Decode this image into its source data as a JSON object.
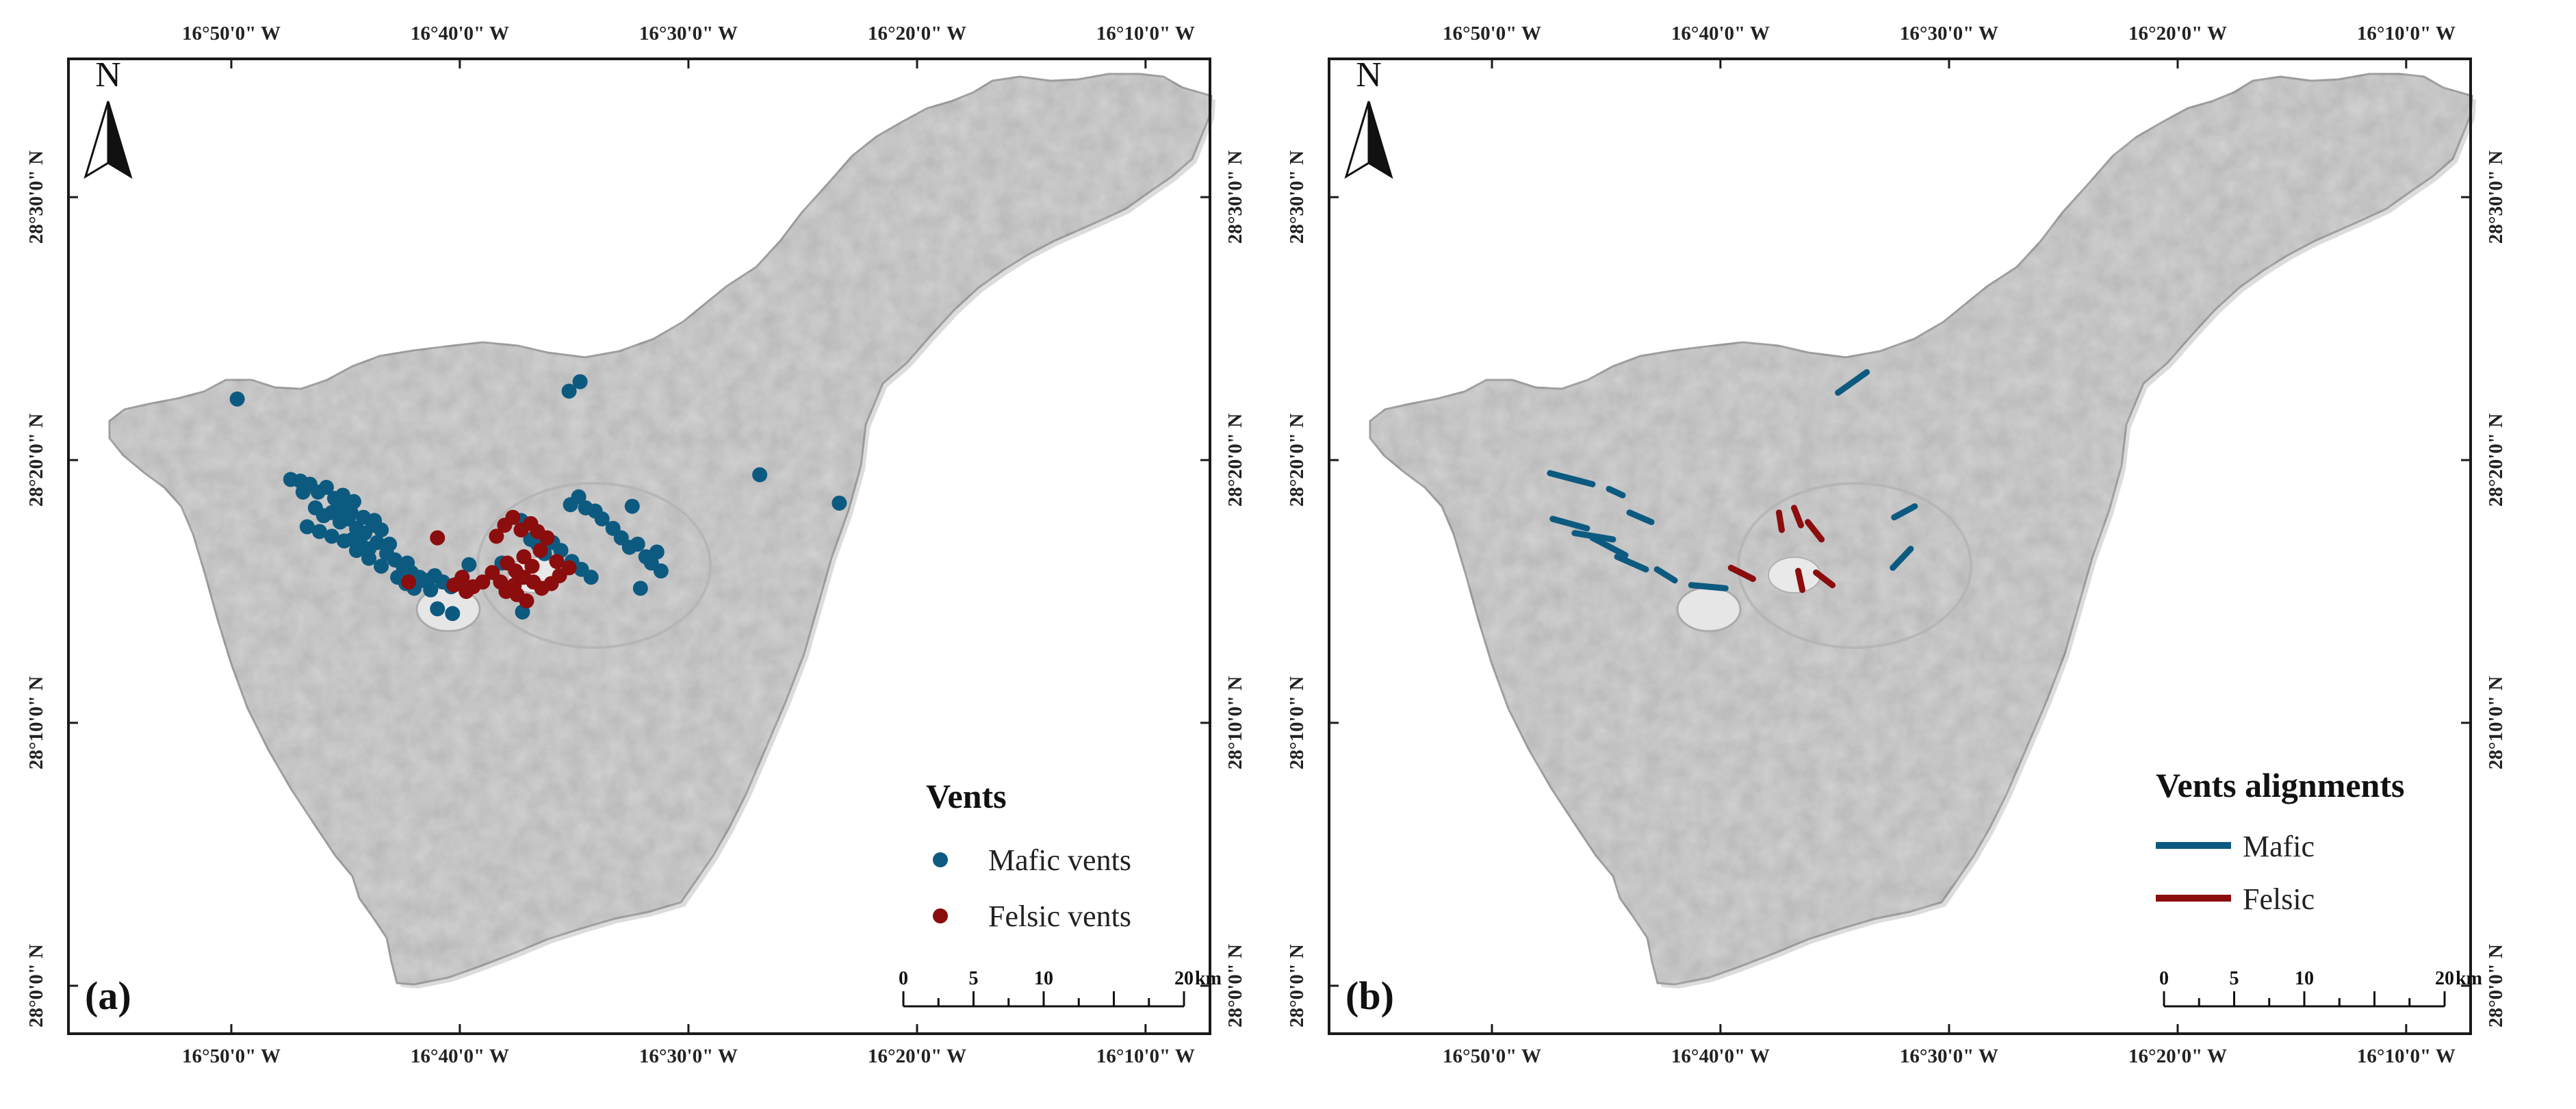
{
  "colors": {
    "mafic": "#0d5a80",
    "felsic": "#8b0d0d",
    "frame": "#1a1a1a",
    "land": "#d2d2d2",
    "land_stroke": "#a8a8a8",
    "sea": "#ffffff"
  },
  "coords": {
    "top_labels": [
      "16°50'0\" W",
      "16°40'0\" W",
      "16°30'0\" W",
      "16°20'0\" W",
      "16°10'0\" W"
    ],
    "bottom_labels": [
      "16°50'0\" W",
      "16°40'0\" W",
      "16°30'0\" W",
      "16°20'0\" W",
      "16°10'0\" W"
    ],
    "lat_labels": [
      "28°30'0\" N",
      "28°20'0\" N",
      "28°10'0\" N",
      "28°0'0\" N"
    ]
  },
  "north": {
    "label": "N",
    "icon": "north-arrow-icon"
  },
  "panels": [
    {
      "label": "(a)",
      "legend": {
        "title": "Vents",
        "items": [
          {
            "label": "Mafic vents",
            "symbol": "dot",
            "color": "#0d5a80"
          },
          {
            "label": "Felsic vents",
            "symbol": "dot",
            "color": "#8b0d0d"
          }
        ]
      },
      "scale": {
        "ticks": [
          "0",
          "5",
          "10",
          "20"
        ],
        "unit": "km"
      }
    },
    {
      "label": "(b)",
      "legend": {
        "title": "Vents alignments",
        "items": [
          {
            "label": "Mafic",
            "symbol": "line",
            "color": "#0d5a80"
          },
          {
            "label": "Felsic",
            "symbol": "line",
            "color": "#8b0d0d"
          }
        ]
      },
      "scale": {
        "ticks": [
          "0",
          "5",
          "10",
          "20"
        ],
        "unit": "km"
      }
    }
  ],
  "map_data": {
    "lon_ticks": [
      -16.8333,
      -16.6667,
      -16.5,
      -16.3333,
      -16.1667
    ],
    "lat_ticks": [
      28.5,
      28.3333,
      28.1667,
      28.0
    ],
    "mafic_vents": [
      [
        -16.829,
        28.372
      ],
      [
        -16.79,
        28.321
      ],
      [
        -16.783,
        28.32
      ],
      [
        -16.776,
        28.318
      ],
      [
        -16.77,
        28.313
      ],
      [
        -16.764,
        28.316
      ],
      [
        -16.758,
        28.309
      ],
      [
        -16.752,
        28.311
      ],
      [
        -16.744,
        28.307
      ],
      [
        -16.781,
        28.313
      ],
      [
        -16.772,
        28.303
      ],
      [
        -16.766,
        28.298
      ],
      [
        -16.76,
        28.3
      ],
      [
        -16.754,
        28.294
      ],
      [
        -16.748,
        28.296
      ],
      [
        -16.742,
        28.29
      ],
      [
        -16.736,
        28.287
      ],
      [
        -16.73,
        28.292
      ],
      [
        -16.724,
        28.289
      ],
      [
        -16.745,
        28.283
      ],
      [
        -16.739,
        28.28
      ],
      [
        -16.733,
        28.277
      ],
      [
        -16.727,
        28.281
      ],
      [
        -16.72,
        28.274
      ],
      [
        -16.714,
        28.27
      ],
      [
        -16.708,
        28.266
      ],
      [
        -16.702,
        28.262
      ],
      [
        -16.696,
        28.259
      ],
      [
        -16.69,
        28.257
      ],
      [
        -16.685,
        28.26
      ],
      [
        -16.679,
        28.256
      ],
      [
        -16.673,
        28.253
      ],
      [
        -16.712,
        28.259
      ],
      [
        -16.706,
        28.255
      ],
      [
        -16.7,
        28.252
      ],
      [
        -16.694,
        28.257
      ],
      [
        -16.688,
        28.251
      ],
      [
        -16.778,
        28.291
      ],
      [
        -16.769,
        28.288
      ],
      [
        -16.76,
        28.285
      ],
      [
        -16.751,
        28.282
      ],
      [
        -16.742,
        28.276
      ],
      [
        -16.733,
        28.271
      ],
      [
        -16.724,
        28.266
      ],
      [
        -16.752,
        28.303
      ],
      [
        -16.746,
        28.3
      ],
      [
        -16.737,
        28.297
      ],
      [
        -16.729,
        28.295
      ],
      [
        -16.683,
        28.239
      ],
      [
        -16.672,
        28.236
      ],
      [
        -16.66,
        28.267
      ],
      [
        -16.636,
        28.268
      ],
      [
        -16.621,
        28.237
      ],
      [
        -16.615,
        28.283
      ],
      [
        -16.622,
        28.295
      ],
      [
        -16.61,
        28.28
      ],
      [
        -16.605,
        28.274
      ],
      [
        -16.599,
        28.281
      ],
      [
        -16.593,
        28.276
      ],
      [
        -16.585,
        28.269
      ],
      [
        -16.578,
        28.264
      ],
      [
        -16.571,
        28.259
      ],
      [
        -16.586,
        28.305
      ],
      [
        -16.58,
        28.31
      ],
      [
        -16.575,
        28.303
      ],
      [
        -16.568,
        28.301
      ],
      [
        -16.563,
        28.296
      ],
      [
        -16.555,
        28.29
      ],
      [
        -16.549,
        28.284
      ],
      [
        -16.543,
        28.278
      ],
      [
        -16.537,
        28.28
      ],
      [
        -16.531,
        28.272
      ],
      [
        -16.527,
        28.268
      ],
      [
        -16.523,
        28.275
      ],
      [
        -16.52,
        28.263
      ],
      [
        -16.541,
        28.304
      ],
      [
        -16.535,
        28.252
      ],
      [
        -16.587,
        28.377
      ],
      [
        -16.579,
        28.383
      ],
      [
        -16.448,
        28.324
      ],
      [
        -16.39,
        28.306
      ],
      [
        -16.668,
        28.255
      ],
      [
        -16.705,
        28.268
      ],
      [
        -16.718,
        28.28
      ]
    ],
    "felsic_vents": [
      [
        -16.683,
        28.284
      ],
      [
        -16.704,
        28.256
      ],
      [
        -16.665,
        28.259
      ],
      [
        -16.657,
        28.253
      ],
      [
        -16.65,
        28.256
      ],
      [
        -16.643,
        28.262
      ],
      [
        -16.637,
        28.256
      ],
      [
        -16.633,
        28.25
      ],
      [
        -16.627,
        28.254
      ],
      [
        -16.62,
        28.259
      ],
      [
        -16.613,
        28.256
      ],
      [
        -16.607,
        28.252
      ],
      [
        -16.6,
        28.255
      ],
      [
        -16.594,
        28.26
      ],
      [
        -16.587,
        28.265
      ],
      [
        -16.64,
        28.285
      ],
      [
        -16.634,
        28.292
      ],
      [
        -16.628,
        28.297
      ],
      [
        -16.622,
        28.289
      ],
      [
        -16.615,
        28.293
      ],
      [
        -16.61,
        28.288
      ],
      [
        -16.603,
        28.284
      ],
      [
        -16.632,
        28.268
      ],
      [
        -16.626,
        28.263
      ],
      [
        -16.62,
        28.272
      ],
      [
        -16.614,
        28.266
      ],
      [
        -16.618,
        28.244
      ],
      [
        -16.625,
        28.248
      ],
      [
        -16.608,
        28.276
      ],
      [
        -16.596,
        28.269
      ],
      [
        -16.662,
        28.25
      ],
      [
        -16.671,
        28.254
      ]
    ],
    "mafic_alignments": [
      [
        [
          -16.791,
          28.325
        ],
        [
          -16.76,
          28.318
        ]
      ],
      [
        [
          -16.748,
          28.315
        ],
        [
          -16.738,
          28.311
        ]
      ],
      [
        [
          -16.789,
          28.296
        ],
        [
          -16.764,
          28.29
        ]
      ],
      [
        [
          -16.773,
          28.287
        ],
        [
          -16.745,
          28.283
        ]
      ],
      [
        [
          -16.76,
          28.284
        ],
        [
          -16.736,
          28.273
        ]
      ],
      [
        [
          -16.742,
          28.272
        ],
        [
          -16.721,
          28.264
        ]
      ],
      [
        [
          -16.733,
          28.3
        ],
        [
          -16.717,
          28.294
        ]
      ],
      [
        [
          -16.713,
          28.264
        ],
        [
          -16.7,
          28.257
        ]
      ],
      [
        [
          -16.688,
          28.254
        ],
        [
          -16.663,
          28.252
        ]
      ],
      [
        [
          -16.581,
          28.376
        ],
        [
          -16.56,
          28.389
        ]
      ],
      [
        [
          -16.54,
          28.297
        ],
        [
          -16.525,
          28.304
        ]
      ],
      [
        [
          -16.541,
          28.265
        ],
        [
          -16.528,
          28.277
        ]
      ]
    ],
    "felsic_alignments": [
      [
        [
          -16.659,
          28.265
        ],
        [
          -16.643,
          28.258
        ]
      ],
      [
        [
          -16.624,
          28.3
        ],
        [
          -16.622,
          28.289
        ]
      ],
      [
        [
          -16.613,
          28.303
        ],
        [
          -16.608,
          28.292
        ]
      ],
      [
        [
          -16.603,
          28.294
        ],
        [
          -16.593,
          28.283
        ]
      ],
      [
        [
          -16.61,
          28.263
        ],
        [
          -16.607,
          28.251
        ]
      ],
      [
        [
          -16.597,
          28.262
        ],
        [
          -16.585,
          28.254
        ]
      ]
    ]
  }
}
